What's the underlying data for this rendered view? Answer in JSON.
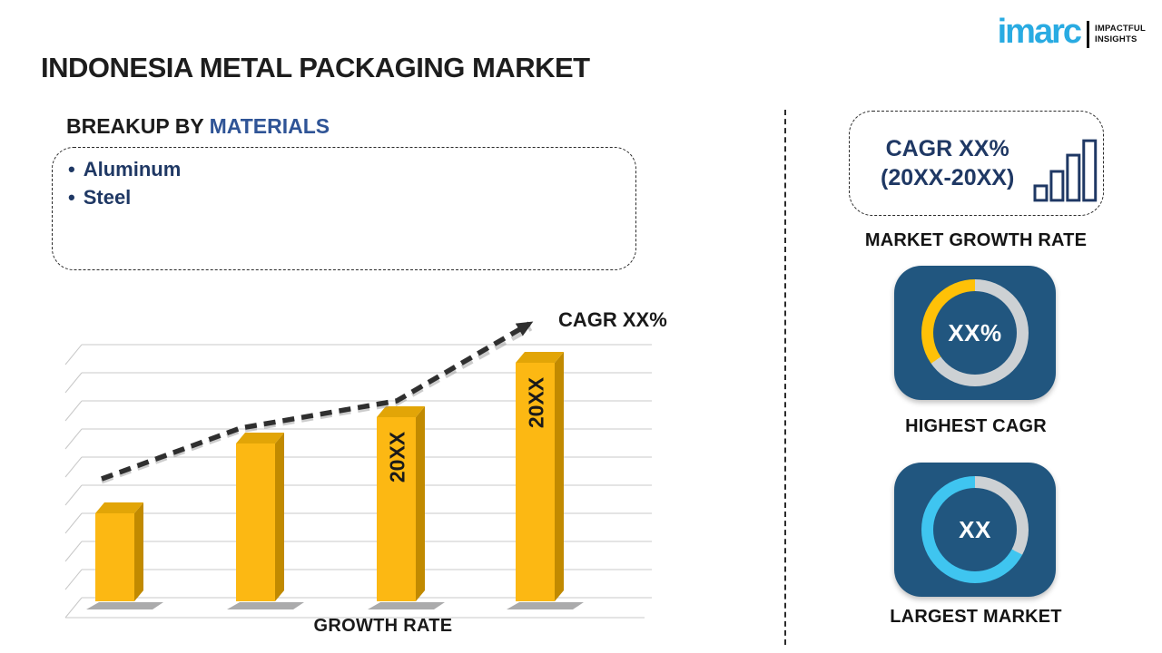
{
  "page": {
    "title": "INDONESIA METAL PACKAGING MARKET"
  },
  "logo": {
    "brand": "imarc",
    "tagline_line1": "IMPACTFUL",
    "tagline_line2": "INSIGHTS",
    "brand_color": "#29ABE2"
  },
  "breakup": {
    "heading_prefix": "BREAKUP BY ",
    "heading_highlight": "MATERIALS",
    "items": [
      "Aluminum",
      "Steel"
    ]
  },
  "chart_data": {
    "type": "bar",
    "title": "",
    "xlabel": "GROWTH RATE",
    "ylabel": "",
    "categories": [
      "",
      "",
      "20XX",
      "20XX"
    ],
    "values": [
      37,
      66,
      77,
      100
    ],
    "value_note": "relative heights; axis unlabeled placeholder infographic",
    "trend_label": "CAGR XX%",
    "grid": true,
    "legend": false,
    "bar_color": "#FCB813",
    "bar_side_color": "#C18A00",
    "bar_top_color": "#E2A507",
    "grid_color": "#c8c8c8",
    "trend_color": "#2f2f2f"
  },
  "right_panel": {
    "cagr_box": {
      "line1": "CAGR XX%",
      "line2": "(20XX-20XX)"
    },
    "market_growth_rate_label": "MARKET GROWTH RATE",
    "highest_cagr": {
      "center_label": "XX%",
      "caption": "HIGHEST CAGR",
      "tile_color": "#21567F",
      "ring_gray": "#CDD1D4",
      "segment_color": "#FFC107",
      "segment_deg": 125
    },
    "largest_market": {
      "center_label": "XX",
      "caption": "LARGEST MARKET",
      "tile_color": "#21567F",
      "ring_gray": "#CDD1D4",
      "segment_color": "#3FC5F0",
      "gray_deg": 118
    }
  }
}
